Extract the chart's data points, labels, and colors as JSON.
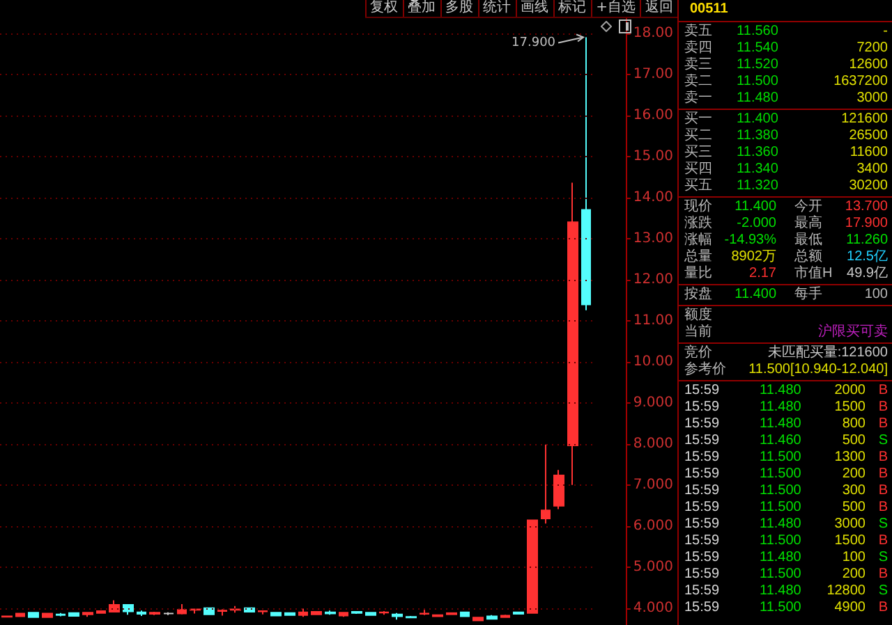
{
  "chart_data": [
    {
      "type": "candlestick",
      "categories": [
        null,
        null,
        null,
        null,
        null,
        null,
        null,
        null,
        null,
        null,
        null,
        null,
        null,
        null,
        null,
        null,
        null,
        null,
        null,
        null,
        null,
        null,
        null,
        null,
        null,
        null,
        null,
        null,
        null,
        null,
        null,
        null,
        null,
        null,
        null,
        null,
        null,
        null,
        null,
        null,
        null,
        null,
        null,
        null
      ],
      "ohlc": [
        [
          3.8,
          3.82,
          3.78,
          3.81
        ],
        [
          3.81,
          3.88,
          3.8,
          3.88
        ],
        [
          3.9,
          3.9,
          3.79,
          3.79
        ],
        [
          3.79,
          3.88,
          3.78,
          3.88
        ],
        [
          3.86,
          3.89,
          3.81,
          3.84
        ],
        [
          3.89,
          3.89,
          3.82,
          3.82
        ],
        [
          3.86,
          3.9,
          3.8,
          3.9
        ],
        [
          3.89,
          3.95,
          3.88,
          3.94
        ],
        [
          3.92,
          4.2,
          3.92,
          4.09
        ],
        [
          4.09,
          4.09,
          3.85,
          3.93
        ],
        [
          3.91,
          3.95,
          3.82,
          3.87
        ],
        [
          3.87,
          3.92,
          3.84,
          3.9
        ],
        [
          3.88,
          3.91,
          3.84,
          3.88
        ],
        [
          3.88,
          4.11,
          3.86,
          3.97
        ],
        [
          3.97,
          3.99,
          3.88,
          3.98
        ],
        [
          4.01,
          4.01,
          3.86,
          3.86
        ],
        [
          3.94,
          3.98,
          3.83,
          3.95
        ],
        [
          3.97,
          4.06,
          3.9,
          3.98
        ],
        [
          4.01,
          4.01,
          3.92,
          3.92
        ],
        [
          3.93,
          3.95,
          3.86,
          3.94
        ],
        [
          3.9,
          3.9,
          3.83,
          3.83
        ],
        [
          3.89,
          3.89,
          3.84,
          3.84
        ],
        [
          3.84,
          4,
          3.8,
          3.91
        ],
        [
          3.86,
          3.92,
          3.86,
          3.92
        ],
        [
          3.91,
          3.95,
          3.85,
          3.88
        ],
        [
          3.83,
          3.9,
          3.8,
          3.9
        ],
        [
          3.92,
          3.94,
          3.87,
          3.89
        ],
        [
          3.9,
          3.9,
          3.84,
          3.84
        ],
        [
          3.9,
          3.94,
          3.85,
          3.91
        ],
        [
          3.86,
          3.89,
          3.73,
          3.81
        ],
        [
          3.8,
          3.82,
          3.77,
          3.78
        ],
        [
          3.87,
          3.97,
          3.84,
          3.88
        ],
        [
          3.81,
          3.85,
          3.8,
          3.84
        ],
        [
          3.86,
          3.89,
          3.86,
          3.89
        ],
        [
          3.91,
          3.91,
          3.81,
          3.81
        ],
        [
          3.71,
          3.8,
          3.71,
          3.78
        ],
        [
          3.81,
          3.84,
          3.73,
          3.75
        ],
        [
          3.79,
          3.85,
          3.78,
          3.83
        ],
        [
          3.91,
          3.91,
          3.86,
          3.87
        ],
        [
          3.89,
          6.15,
          3.89,
          6.15
        ],
        [
          6.19,
          7.99,
          6.07,
          6.39
        ],
        [
          6.5,
          7.37,
          6.42,
          7.24
        ],
        [
          7.97,
          14.36,
          7.01,
          13.4
        ],
        [
          13.7,
          17.9,
          11.26,
          11.4
        ]
      ],
      "colors": [
        "#ff3232",
        "#ff3232",
        "#54fcfc",
        "#ff3232",
        "#54fcfc",
        "#54fcfc",
        "#ff3232",
        "#ff3232",
        "#ff3232",
        "#54fcfc",
        "#54fcfc",
        "#ff3232",
        "#c8c8c8",
        "#ff3232",
        "#ff3232",
        "#54fcfc",
        "#ff3232",
        "#ff3232",
        "#54fcfc",
        "#ff3232",
        "#54fcfc",
        "#54fcfc",
        "#ff3232",
        "#ff3232",
        "#54fcfc",
        "#ff3232",
        "#54fcfc",
        "#54fcfc",
        "#ff3232",
        "#54fcfc",
        "#54fcfc",
        "#ff3232",
        "#ff3232",
        "#ff3232",
        "#54fcfc",
        "#ff3232",
        "#54fcfc",
        "#ff3232",
        "#54fcfc",
        "#ff3232",
        "#ff3232",
        "#ff3232",
        "#ff3232",
        "#54fcfc"
      ],
      "ylim": [
        3.6,
        18.4
      ],
      "yticks": [
        {
          "value": 4,
          "label": "4.000"
        },
        {
          "value": 5,
          "label": "5.000"
        },
        {
          "value": 6,
          "label": "6.000"
        },
        {
          "value": 7,
          "label": "7.000"
        },
        {
          "value": 8,
          "label": "8.000"
        },
        {
          "value": 9,
          "label": "9.000"
        },
        {
          "value": 10,
          "label": "10.00"
        },
        {
          "value": 11,
          "label": "11.00"
        },
        {
          "value": 12,
          "label": "12.00"
        },
        {
          "value": 13,
          "label": "13.00"
        },
        {
          "value": 14,
          "label": "14.00"
        },
        {
          "value": 15,
          "label": "15.00"
        },
        {
          "value": 16,
          "label": "16.00"
        },
        {
          "value": 17,
          "label": "17.00"
        },
        {
          "value": 18,
          "label": "18.00"
        }
      ],
      "grid": "y",
      "tick_labels": "y",
      "annotations": [
        "复权",
        "叠加",
        "多股",
        "统计",
        "画线",
        "标记",
        "+自选",
        "返回",
        "17.900"
      ]
    },
    {
      "type": "other",
      "title": "00511",
      "annotations": [
        "卖五  11.560  -",
        "卖四  11.540  7200",
        "卖三  11.520  12600",
        "卖二  11.500  1637200",
        "卖一  11.480  3000",
        "买一  11.400  121600",
        "买二  11.380  26500",
        "买三  11.360  11600",
        "买四  11.340  3400",
        "买五  11.320  30200",
        "现价  11.400  今开  13.700",
        "涨跌  -2.000  最高  17.900",
        "涨幅  -14.93%  最低  11.260",
        "总量  8902万  总额  12.5亿",
        "量比  2.17  市值H  49.9亿",
        "按盘  11.400  每手  100",
        "额度",
        "当前  沪限买可卖",
        "竞价  未匹配买量:121600",
        "参考价  11.500[10.940-12.040]",
        "15:59  11.480  2000  B",
        "15:59  11.480  1500  B",
        "15:59  11.480  800  B",
        "15:59  11.460  500  S",
        "15:59  11.500  1300  B",
        "15:59  11.500  200  B",
        "15:59  11.500  300  B",
        "15:59  11.500  500  B",
        "15:59  11.480  3000  S",
        "15:59  11.500  1500  B",
        "15:59  11.480  100  S",
        "15:59  11.500  200  B",
        "15:59  11.480  12800  S",
        "15:59  11.500  4900  B"
      ]
    }
  ]
}
